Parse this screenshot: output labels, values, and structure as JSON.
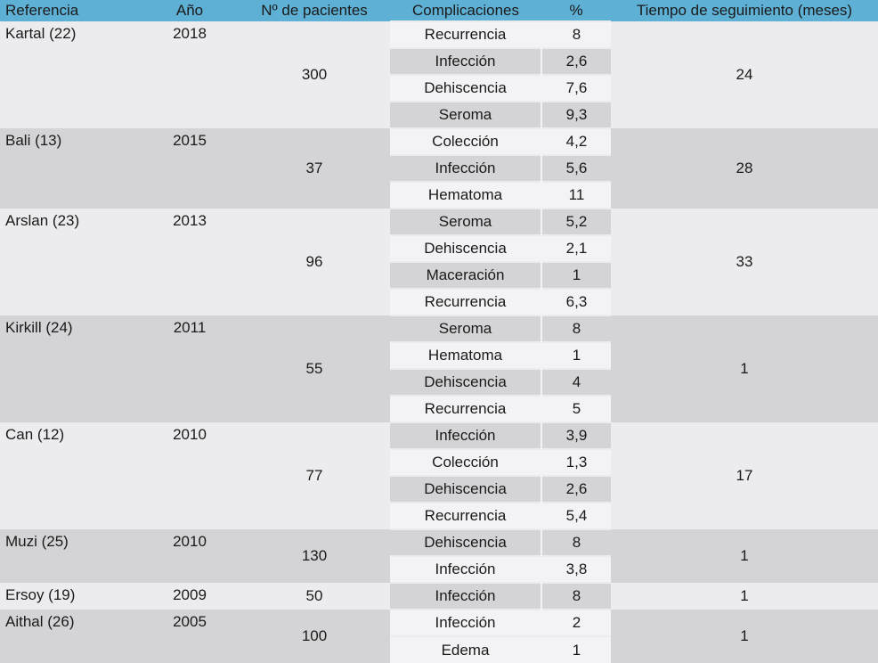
{
  "headers": [
    "Referencia",
    "Año",
    "Nº de pacientes",
    "Complicaciones",
    "%",
    "Tiempo de seguimiento (meses)"
  ],
  "studies": [
    {
      "ref": "Kartal (22)",
      "year": "2018",
      "patients": "300",
      "followup": "24",
      "group": "A",
      "rows": [
        {
          "c": "Recurrencia",
          "p": "8",
          "s": "lt"
        },
        {
          "c": "Infección",
          "p": "2,6",
          "s": "dk"
        },
        {
          "c": "Dehiscencia",
          "p": "7,6",
          "s": "lt"
        },
        {
          "c": "Seroma",
          "p": "9,3",
          "s": "dk"
        }
      ]
    },
    {
      "ref": "Bali (13)",
      "year": "2015",
      "patients": "37",
      "followup": "28",
      "group": "B",
      "rows": [
        {
          "c": "Colección",
          "p": "4,2",
          "s": "lt"
        },
        {
          "c": "Infección",
          "p": "5,6",
          "s": "dk"
        },
        {
          "c": "Hematoma",
          "p": "11",
          "s": "lt"
        }
      ]
    },
    {
      "ref": "Arslan (23)",
      "year": "2013",
      "patients": "96",
      "followup": "33",
      "group": "A",
      "rows": [
        {
          "c": "Seroma",
          "p": "5,2",
          "s": "dk"
        },
        {
          "c": "Dehiscencia",
          "p": "2,1",
          "s": "lt"
        },
        {
          "c": "Maceración",
          "p": "1",
          "s": "dk"
        },
        {
          "c": "Recurrencia",
          "p": "6,3",
          "s": "lt"
        }
      ]
    },
    {
      "ref": "Kirkill (24)",
      "year": "2011",
      "patients": "55",
      "followup": "1",
      "group": "B",
      "rows": [
        {
          "c": "Seroma",
          "p": "8",
          "s": "dk"
        },
        {
          "c": "Hematoma",
          "p": "1",
          "s": "lt"
        },
        {
          "c": "Dehiscencia",
          "p": "4",
          "s": "dk"
        },
        {
          "c": "Recurrencia",
          "p": "5",
          "s": "lt"
        }
      ]
    },
    {
      "ref": "Can (12)",
      "year": "2010",
      "patients": "77",
      "followup": "17",
      "group": "A",
      "rows": [
        {
          "c": "Infección",
          "p": "3,9",
          "s": "dk"
        },
        {
          "c": "Colección",
          "p": "1,3",
          "s": "lt"
        },
        {
          "c": "Dehiscencia",
          "p": "2,6",
          "s": "dk"
        },
        {
          "c": "Recurrencia",
          "p": "5,4",
          "s": "lt"
        }
      ]
    },
    {
      "ref": "Muzi (25)",
      "year": "2010",
      "patients": "130",
      "followup": "1",
      "group": "B",
      "rows": [
        {
          "c": "Dehiscencia",
          "p": "8",
          "s": "dk"
        },
        {
          "c": "Infección",
          "p": "3,8",
          "s": "lt"
        }
      ]
    },
    {
      "ref": "Ersoy (19)",
      "year": "2009",
      "patients": "50",
      "followup": "1",
      "group": "A",
      "rows": [
        {
          "c": "Infección",
          "p": "8",
          "s": "dk"
        }
      ]
    },
    {
      "ref": "Aithal (26)",
      "year": "2005",
      "patients": "100",
      "followup": "1",
      "group": "B",
      "rows": [
        {
          "c": "Infección",
          "p": "2",
          "s": "lt"
        },
        {
          "c": "Edema",
          "p": "1",
          "s": "lt"
        }
      ]
    }
  ]
}
